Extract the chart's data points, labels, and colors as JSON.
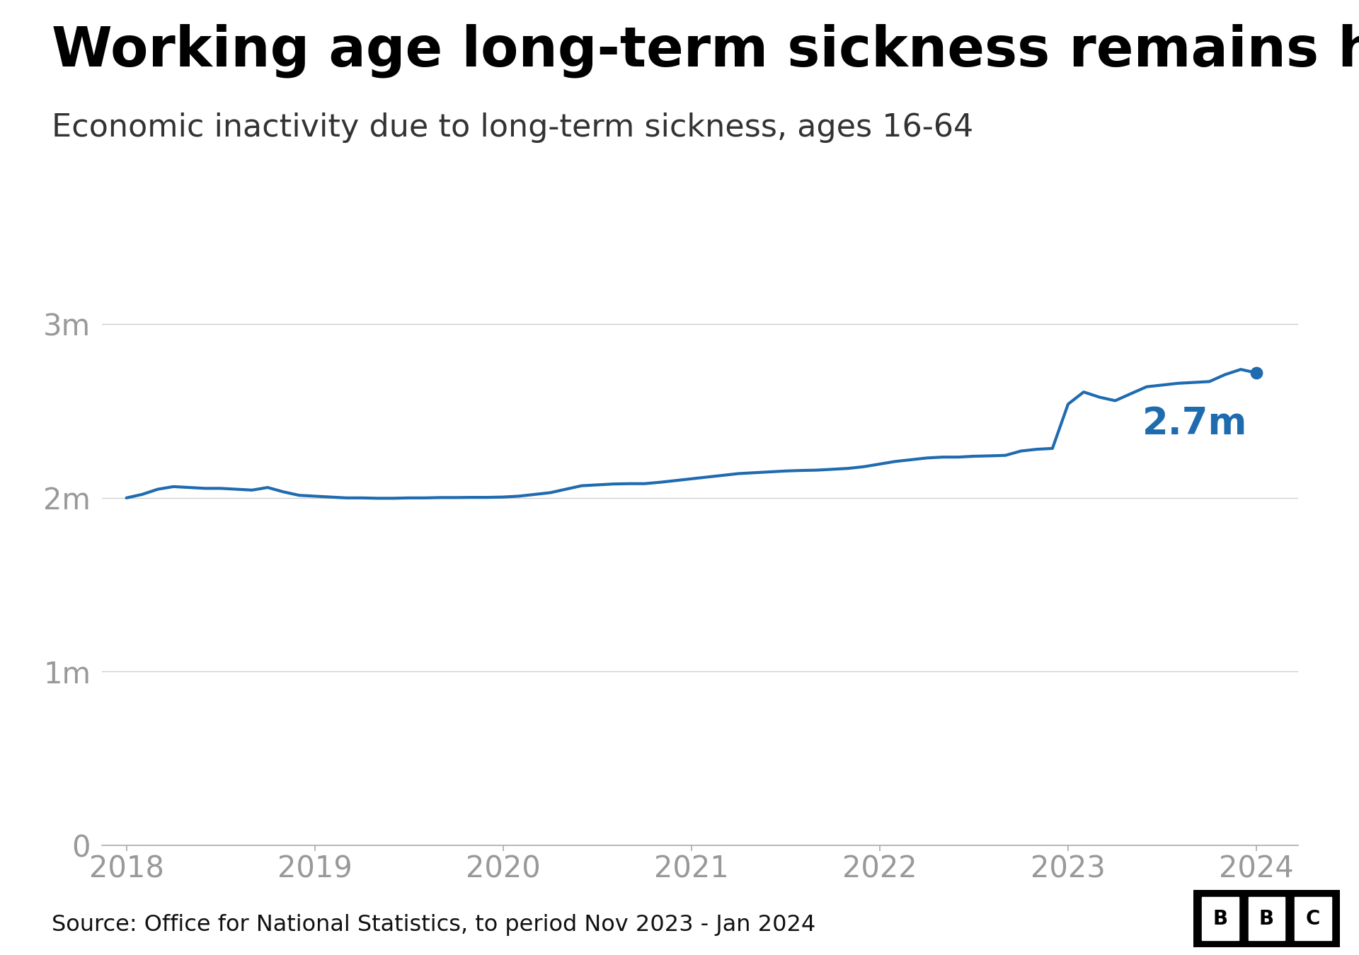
{
  "title": "Working age long-term sickness remains high",
  "subtitle": "Economic inactivity due to long-term sickness, ages 16-64",
  "source": "Source: Office for National Statistics, to period Nov 2023 - Jan 2024",
  "line_color": "#1f6bb0",
  "background_color": "#ffffff",
  "title_color": "#000000",
  "axis_color": "#999999",
  "annotation_label": "2.7m",
  "annotation_color": "#1f6bb0",
  "ylim": [
    0,
    3300000
  ],
  "yticks": [
    0,
    1000000,
    2000000,
    3000000
  ],
  "ytick_labels": [
    "0",
    "1m",
    "2m",
    "3m"
  ],
  "xticks": [
    2018,
    2019,
    2020,
    2021,
    2022,
    2023,
    2024
  ],
  "x_values": [
    2018.0,
    2018.083,
    2018.167,
    2018.25,
    2018.333,
    2018.417,
    2018.5,
    2018.583,
    2018.667,
    2018.75,
    2018.833,
    2018.917,
    2019.0,
    2019.083,
    2019.167,
    2019.25,
    2019.333,
    2019.417,
    2019.5,
    2019.583,
    2019.667,
    2019.75,
    2019.833,
    2019.917,
    2020.0,
    2020.083,
    2020.167,
    2020.25,
    2020.333,
    2020.417,
    2020.5,
    2020.583,
    2020.667,
    2020.75,
    2020.833,
    2020.917,
    2021.0,
    2021.083,
    2021.167,
    2021.25,
    2021.333,
    2021.417,
    2021.5,
    2021.583,
    2021.667,
    2021.75,
    2021.833,
    2021.917,
    2022.0,
    2022.083,
    2022.167,
    2022.25,
    2022.333,
    2022.417,
    2022.5,
    2022.583,
    2022.667,
    2022.75,
    2022.833,
    2022.917,
    2023.0,
    2023.083,
    2023.167,
    2023.25,
    2023.333,
    2023.417,
    2023.5,
    2023.583,
    2023.667,
    2023.75,
    2023.833,
    2023.917,
    2024.0
  ],
  "y_values": [
    2000000,
    2020000,
    2050000,
    2065000,
    2060000,
    2055000,
    2055000,
    2050000,
    2045000,
    2060000,
    2035000,
    2015000,
    2010000,
    2005000,
    2000000,
    2000000,
    1998000,
    1998000,
    2000000,
    2000000,
    2002000,
    2002000,
    2003000,
    2003000,
    2005000,
    2010000,
    2020000,
    2030000,
    2050000,
    2070000,
    2075000,
    2080000,
    2082000,
    2082000,
    2090000,
    2100000,
    2110000,
    2120000,
    2130000,
    2140000,
    2145000,
    2150000,
    2155000,
    2158000,
    2160000,
    2165000,
    2170000,
    2180000,
    2195000,
    2210000,
    2220000,
    2230000,
    2235000,
    2235000,
    2240000,
    2242000,
    2245000,
    2270000,
    2280000,
    2285000,
    2540000,
    2610000,
    2580000,
    2560000,
    2600000,
    2640000,
    2650000,
    2660000,
    2665000,
    2670000,
    2710000,
    2740000,
    2720000
  ],
  "last_x": 2024.0,
  "last_y": 2720000,
  "line_width": 3.0,
  "dot_size": 140
}
